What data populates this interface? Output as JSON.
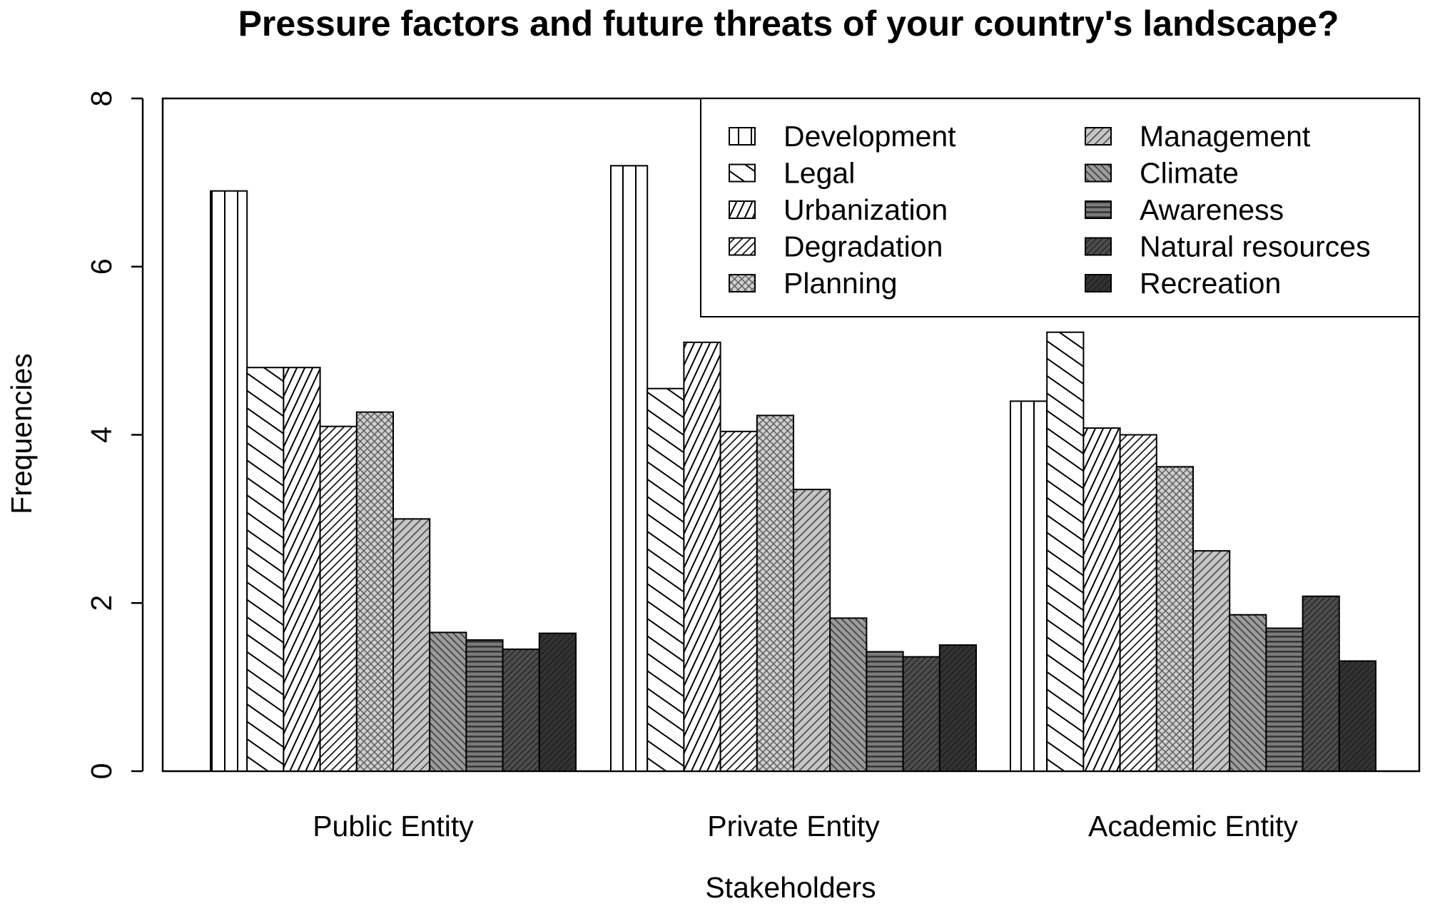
{
  "chart_data": {
    "type": "bar",
    "title": "Pressure factors and future threats of your country's landscape?",
    "xlabel": "Stakeholders",
    "ylabel": "Frequencies",
    "ylim": [
      0,
      8
    ],
    "yticks": [
      0,
      2,
      4,
      6,
      8
    ],
    "categories": [
      "Public Entity",
      "Private Entity",
      "Academic Entity"
    ],
    "legend_position": "top-right",
    "legend_columns": 2,
    "series": [
      {
        "name": "Development",
        "values": [
          6.9,
          7.2,
          4.4
        ],
        "fill": "#ffffff",
        "pattern": "vlines",
        "pattern_color": "#000000"
      },
      {
        "name": "Legal",
        "values": [
          4.8,
          4.55,
          5.22
        ],
        "fill": "#ffffff",
        "pattern": "diag-wide",
        "pattern_color": "#000000"
      },
      {
        "name": "Urbanization",
        "values": [
          4.8,
          5.1,
          4.08
        ],
        "fill": "#ffffff",
        "pattern": "diag-steep",
        "pattern_color": "#000000"
      },
      {
        "name": "Degradation",
        "values": [
          4.1,
          4.04,
          4.0
        ],
        "fill": "#ffffff",
        "pattern": "diag-dense",
        "pattern_color": "#000000"
      },
      {
        "name": "Planning",
        "values": [
          4.27,
          4.23,
          3.62
        ],
        "fill": "#d0d0d0",
        "pattern": "crosshatch",
        "pattern_color": "#555555"
      },
      {
        "name": "Management",
        "values": [
          3.0,
          3.35,
          2.62
        ],
        "fill": "#c6c6c6",
        "pattern": "diag-dense",
        "pattern_color": "#444444"
      },
      {
        "name": "Climate",
        "values": [
          1.65,
          1.82,
          1.86
        ],
        "fill": "#9c9c9c",
        "pattern": "diag-back",
        "pattern_color": "#3a3a3a"
      },
      {
        "name": "Awareness",
        "values": [
          1.56,
          1.42,
          1.7
        ],
        "fill": "#7a7a7a",
        "pattern": "hlines",
        "pattern_color": "#2a2a2a"
      },
      {
        "name": "Natural resources",
        "values": [
          1.45,
          1.36,
          2.08
        ],
        "fill": "#4d4d4d",
        "pattern": "diag-fine",
        "pattern_color": "#222222"
      },
      {
        "name": "Recreation",
        "values": [
          1.64,
          1.5,
          1.31
        ],
        "fill": "#333333",
        "pattern": "diag-fine",
        "pattern_color": "#1c1c1c"
      }
    ]
  }
}
